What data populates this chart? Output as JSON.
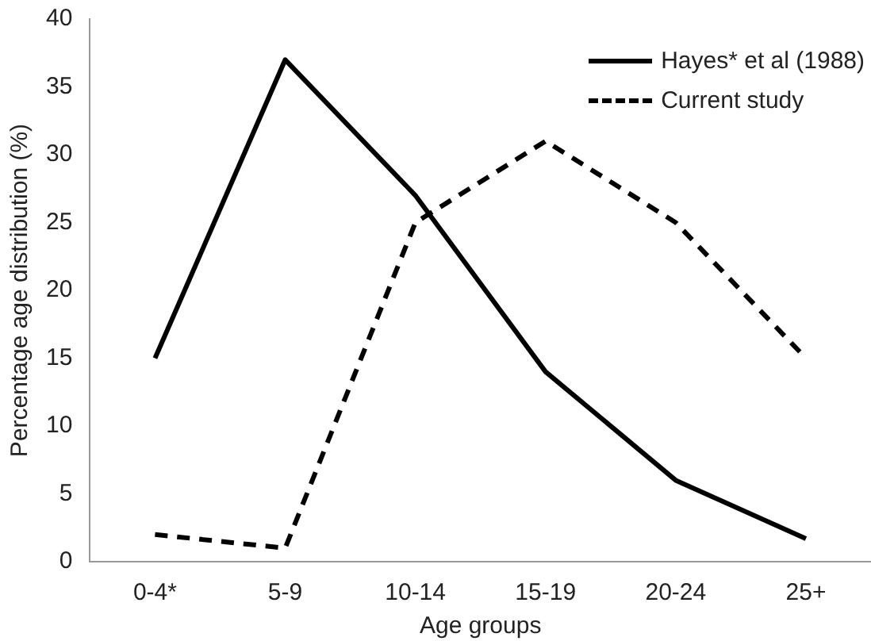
{
  "chart_data": {
    "type": "line",
    "xlabel": "Age groups",
    "ylabel": "Percentage age distribution (%)",
    "categories": [
      "0-4*",
      "5-9",
      "10-14",
      "15-19",
      "20-24",
      "25+"
    ],
    "series": [
      {
        "name": "Hayes* et al (1988)",
        "color": "#000000",
        "line_style": "solid",
        "values": [
          15,
          37,
          27,
          14,
          6,
          1.7
        ]
      },
      {
        "name": "Current study",
        "color": "#000000",
        "line_style": "dashed",
        "values": [
          2,
          1,
          25,
          31,
          25,
          15
        ]
      }
    ],
    "ylim": [
      0,
      40
    ],
    "yticks": [
      0,
      5,
      10,
      15,
      20,
      25,
      30,
      35,
      40
    ],
    "grid": false,
    "legend": "top right",
    "marker": "none"
  }
}
